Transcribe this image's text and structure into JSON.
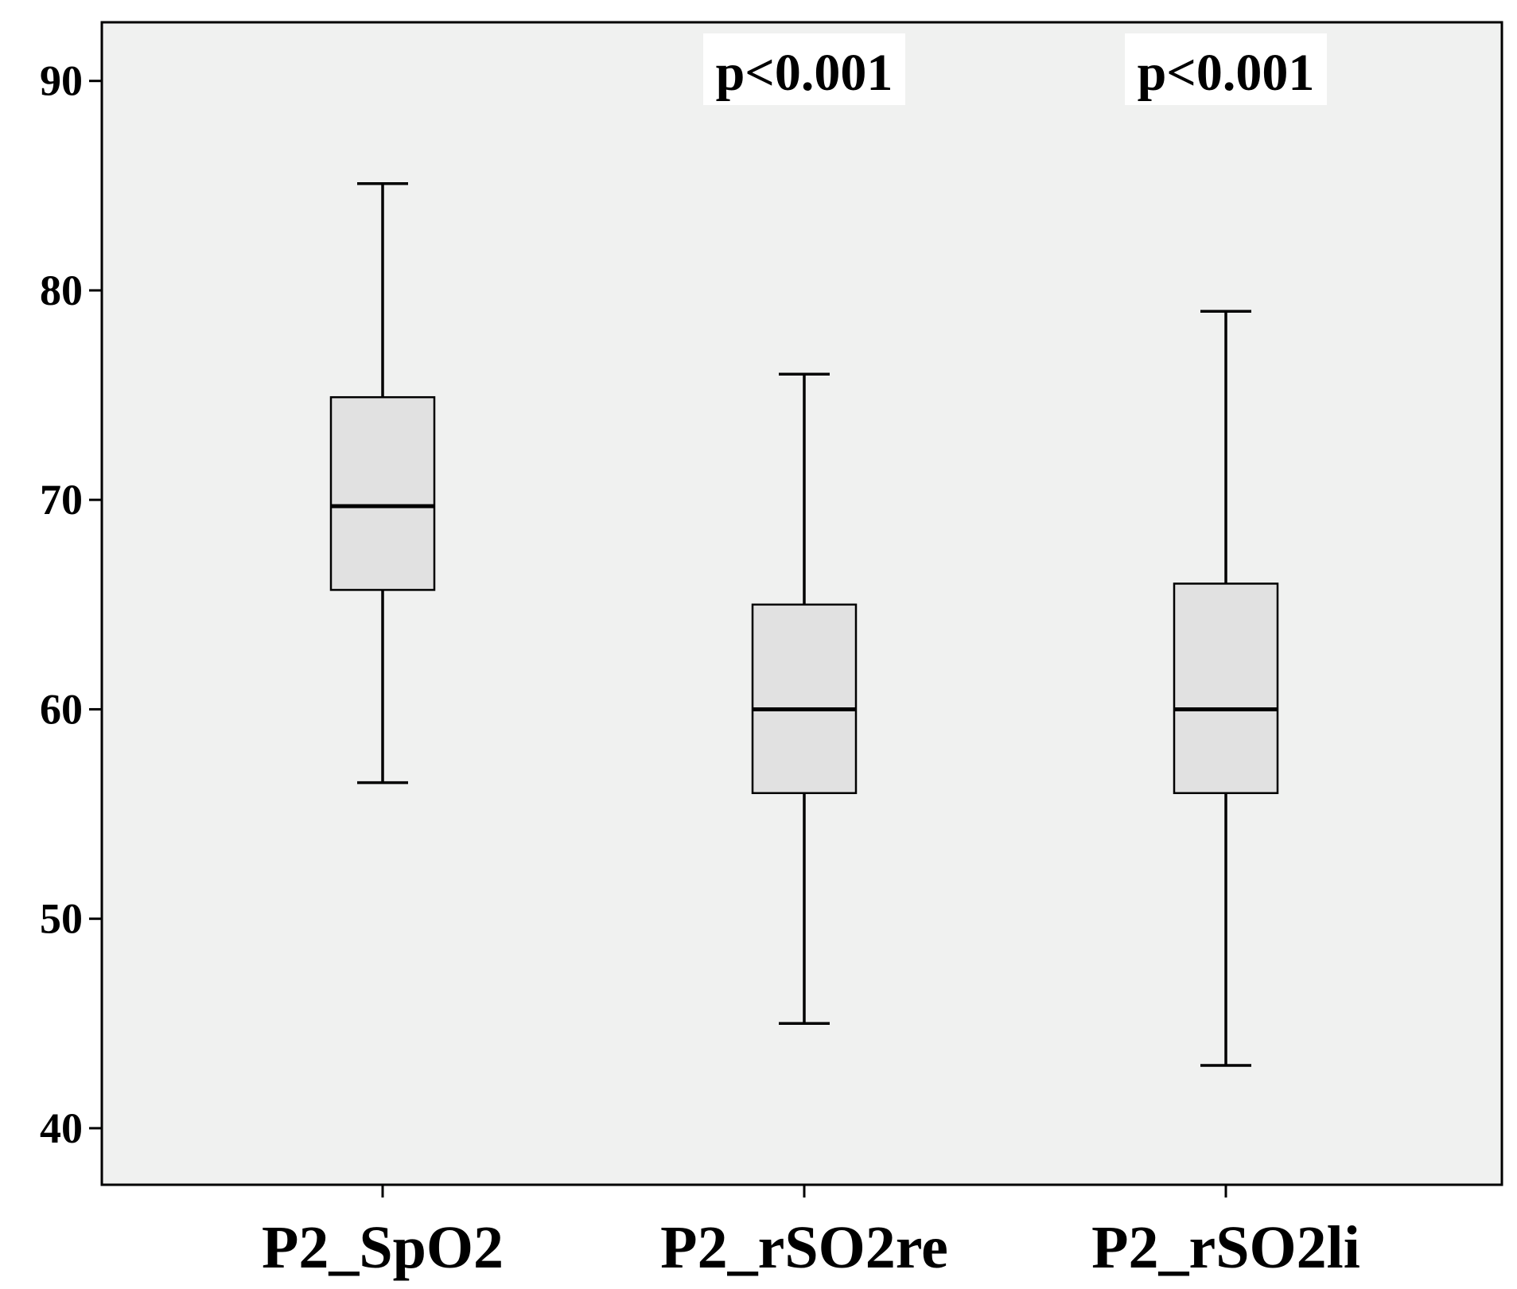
{
  "chart_data": {
    "type": "box",
    "title": "",
    "xlabel": "",
    "ylabel": "",
    "ylim": [
      37.3,
      92.8
    ],
    "yticks": [
      40,
      50,
      60,
      70,
      80,
      90
    ],
    "grid": false,
    "categories": [
      "P2_SpO2",
      "P2_rSO2re",
      "P2_rSO2li"
    ],
    "boxes": [
      {
        "category": "P2_SpO2",
        "min": 56.5,
        "q1": 65.7,
        "median": 69.7,
        "q3": 74.9,
        "max": 85.1
      },
      {
        "category": "P2_rSO2re",
        "min": 45.0,
        "q1": 56.0,
        "median": 60.0,
        "q3": 65.0,
        "max": 76.0
      },
      {
        "category": "P2_rSO2li",
        "min": 43.0,
        "q1": 56.0,
        "median": 60.0,
        "q3": 66.0,
        "max": 79.0
      }
    ],
    "annotations": [
      {
        "category": "P2_rSO2re",
        "text": "p<0.001"
      },
      {
        "category": "P2_rSO2li",
        "text": "p<0.001"
      }
    ],
    "colors": {
      "plot_background": "#f0f1f0",
      "box_fill": "#e1e1e1",
      "stroke": "#000000",
      "annotation_background": "#ffffff"
    }
  }
}
